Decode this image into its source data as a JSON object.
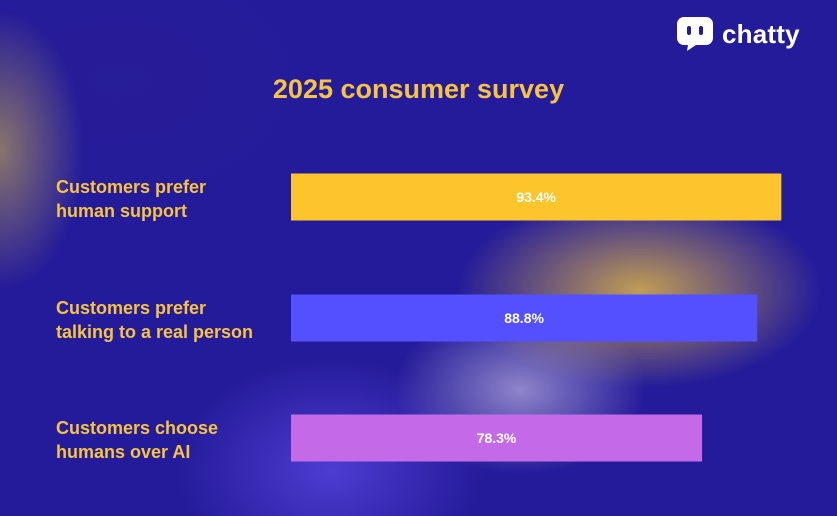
{
  "brand": {
    "name": "chatty",
    "icon": "chat-bubble-icon"
  },
  "colors": {
    "background": "#241b9a",
    "title": "#f6c342",
    "label": "#f6c342",
    "bar_colors": [
      "#fcc52c",
      "#5550ff",
      "#c46ae8"
    ]
  },
  "chart_data": {
    "type": "bar",
    "orientation": "horizontal",
    "title": "2025 consumer survey",
    "categories": [
      [
        "Customers prefer",
        "human support"
      ],
      [
        "Customers prefer",
        "talking to a real person"
      ],
      [
        "Customers choose",
        "humans over AI"
      ]
    ],
    "values": [
      93.4,
      88.8,
      78.3
    ],
    "value_labels": [
      "93.4%",
      "88.8%",
      "78.3%"
    ],
    "xlim": [
      0,
      100
    ],
    "xlabel": "",
    "ylabel": "",
    "grid": false,
    "legend": "none"
  }
}
